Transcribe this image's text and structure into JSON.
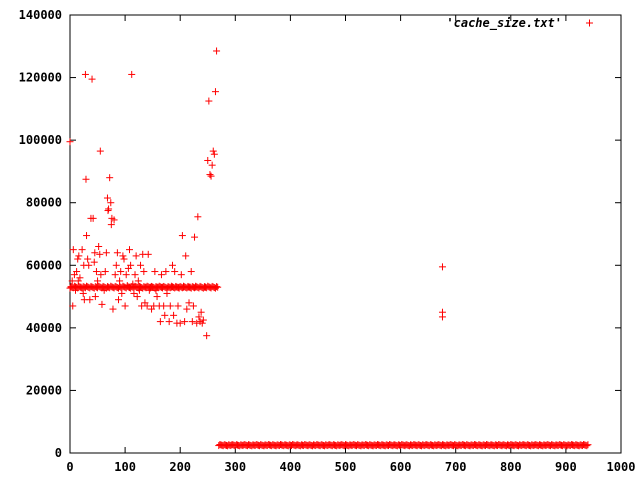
{
  "chart_data": {
    "type": "scatter",
    "title": "",
    "xlabel": "",
    "ylabel": "",
    "xlim": [
      0,
      1000
    ],
    "ylim": [
      0,
      140000
    ],
    "xticks": [
      0,
      100,
      200,
      300,
      400,
      500,
      600,
      700,
      800,
      900,
      1000
    ],
    "yticks": [
      0,
      20000,
      40000,
      60000,
      80000,
      100000,
      120000,
      140000
    ],
    "grid": false,
    "legend_position": "top-right",
    "marker": "plus",
    "series": [
      {
        "name": "'cache_size.txt'",
        "color": "#ff0000",
        "points": [
          [
            0,
            99500
          ],
          [
            2,
            53000
          ],
          [
            4,
            55000
          ],
          [
            5,
            47000
          ],
          [
            6,
            65000
          ],
          [
            8,
            57000
          ],
          [
            10,
            52000
          ],
          [
            12,
            58000
          ],
          [
            14,
            62000
          ],
          [
            15,
            55000
          ],
          [
            16,
            63000
          ],
          [
            18,
            56000
          ],
          [
            20,
            53000
          ],
          [
            22,
            65000
          ],
          [
            24,
            51000
          ],
          [
            25,
            60000
          ],
          [
            26,
            49000
          ],
          [
            28,
            121000
          ],
          [
            29,
            87500
          ],
          [
            30,
            69500
          ],
          [
            32,
            62000
          ],
          [
            34,
            60000
          ],
          [
            36,
            49000
          ],
          [
            38,
            75000
          ],
          [
            40,
            119500
          ],
          [
            42,
            75000
          ],
          [
            44,
            61000
          ],
          [
            45,
            64000
          ],
          [
            46,
            50000
          ],
          [
            48,
            58000
          ],
          [
            50,
            55000
          ],
          [
            52,
            66000
          ],
          [
            54,
            63500
          ],
          [
            55,
            96500
          ],
          [
            56,
            57000
          ],
          [
            58,
            47500
          ],
          [
            60,
            53000
          ],
          [
            62,
            52000
          ],
          [
            64,
            58000
          ],
          [
            66,
            64000
          ],
          [
            68,
            81500
          ],
          [
            69,
            77500
          ],
          [
            70,
            78000
          ],
          [
            72,
            88000
          ],
          [
            74,
            80000
          ],
          [
            75,
            73000
          ],
          [
            76,
            75000
          ],
          [
            78,
            46000
          ],
          [
            80,
            74500
          ],
          [
            82,
            57000
          ],
          [
            84,
            60000
          ],
          [
            86,
            64000
          ],
          [
            88,
            49000
          ],
          [
            90,
            55000
          ],
          [
            92,
            58000
          ],
          [
            94,
            51000
          ],
          [
            96,
            63000
          ],
          [
            98,
            62000
          ],
          [
            100,
            47000
          ],
          [
            102,
            57000
          ],
          [
            104,
            53500
          ],
          [
            106,
            59000
          ],
          [
            108,
            65000
          ],
          [
            110,
            60000
          ],
          [
            112,
            121000
          ],
          [
            114,
            54000
          ],
          [
            116,
            51000
          ],
          [
            118,
            57000
          ],
          [
            120,
            63000
          ],
          [
            122,
            50000
          ],
          [
            124,
            55000
          ],
          [
            126,
            52000
          ],
          [
            128,
            60000
          ],
          [
            130,
            47000
          ],
          [
            132,
            63500
          ],
          [
            134,
            58000
          ],
          [
            136,
            48000
          ],
          [
            138,
            53000
          ],
          [
            140,
            47000
          ],
          [
            142,
            63500
          ],
          [
            144,
            52000
          ],
          [
            146,
            53000
          ],
          [
            148,
            46000
          ],
          [
            150,
            53000
          ],
          [
            152,
            47000
          ],
          [
            154,
            58000
          ],
          [
            156,
            52000
          ],
          [
            158,
            50000
          ],
          [
            160,
            53000
          ],
          [
            162,
            47000
          ],
          [
            164,
            42000
          ],
          [
            166,
            57000
          ],
          [
            168,
            53000
          ],
          [
            170,
            47000
          ],
          [
            172,
            44000
          ],
          [
            174,
            58000
          ],
          [
            176,
            51000
          ],
          [
            178,
            53000
          ],
          [
            180,
            42000
          ],
          [
            182,
            47000
          ],
          [
            184,
            53000
          ],
          [
            186,
            60000
          ],
          [
            188,
            44000
          ],
          [
            190,
            58000
          ],
          [
            192,
            53000
          ],
          [
            194,
            41500
          ],
          [
            196,
            47000
          ],
          [
            198,
            53000
          ],
          [
            200,
            41500
          ],
          [
            202,
            57000
          ],
          [
            204,
            69500
          ],
          [
            206,
            53000
          ],
          [
            208,
            42000
          ],
          [
            210,
            63000
          ],
          [
            212,
            46000
          ],
          [
            214,
            53000
          ],
          [
            216,
            48000
          ],
          [
            218,
            53000
          ],
          [
            220,
            58000
          ],
          [
            222,
            42000
          ],
          [
            224,
            47000
          ],
          [
            226,
            69000
          ],
          [
            228,
            53000
          ],
          [
            230,
            41500
          ],
          [
            232,
            75500
          ],
          [
            234,
            43500
          ],
          [
            236,
            42000
          ],
          [
            238,
            45000
          ],
          [
            240,
            41500
          ],
          [
            242,
            42500
          ],
          [
            244,
            53000
          ],
          [
            246,
            53000
          ],
          [
            248,
            37500
          ],
          [
            250,
            93500
          ],
          [
            252,
            112500
          ],
          [
            254,
            89000
          ],
          [
            256,
            88500
          ],
          [
            258,
            92000
          ],
          [
            260,
            96500
          ],
          [
            262,
            95500
          ],
          [
            264,
            115500
          ],
          [
            266,
            128500
          ],
          [
            676,
            59500
          ],
          [
            676,
            45000
          ],
          [
            676,
            43500
          ]
        ],
        "band_segments": [
          {
            "x_range": [
              0,
              268
            ],
            "y": 53000
          },
          {
            "x_range": [
              270,
              940
            ],
            "y": 2500
          }
        ]
      }
    ]
  }
}
